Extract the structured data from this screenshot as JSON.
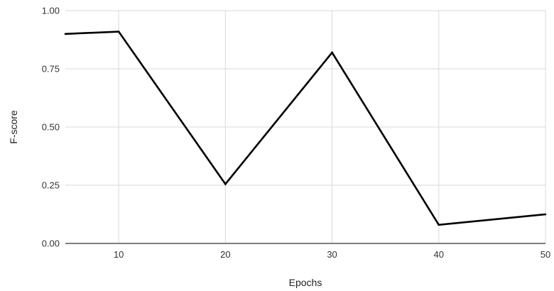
{
  "chart_data": {
    "type": "line",
    "title": "",
    "xlabel": "Epochs",
    "ylabel": "F-score",
    "xlim": [
      5,
      50
    ],
    "ylim": [
      0,
      1
    ],
    "x_ticks": [
      10,
      20,
      30,
      40,
      50
    ],
    "y_ticks": [
      "0.00",
      "0.25",
      "0.50",
      "0.75",
      "1.00"
    ],
    "grid": true,
    "legend": "none",
    "series": [
      {
        "color": "#000000",
        "x": [
          5,
          10,
          20,
          30,
          40,
          50
        ],
        "y": [
          0.9,
          0.91,
          0.255,
          0.82,
          0.08,
          0.125
        ]
      }
    ]
  }
}
